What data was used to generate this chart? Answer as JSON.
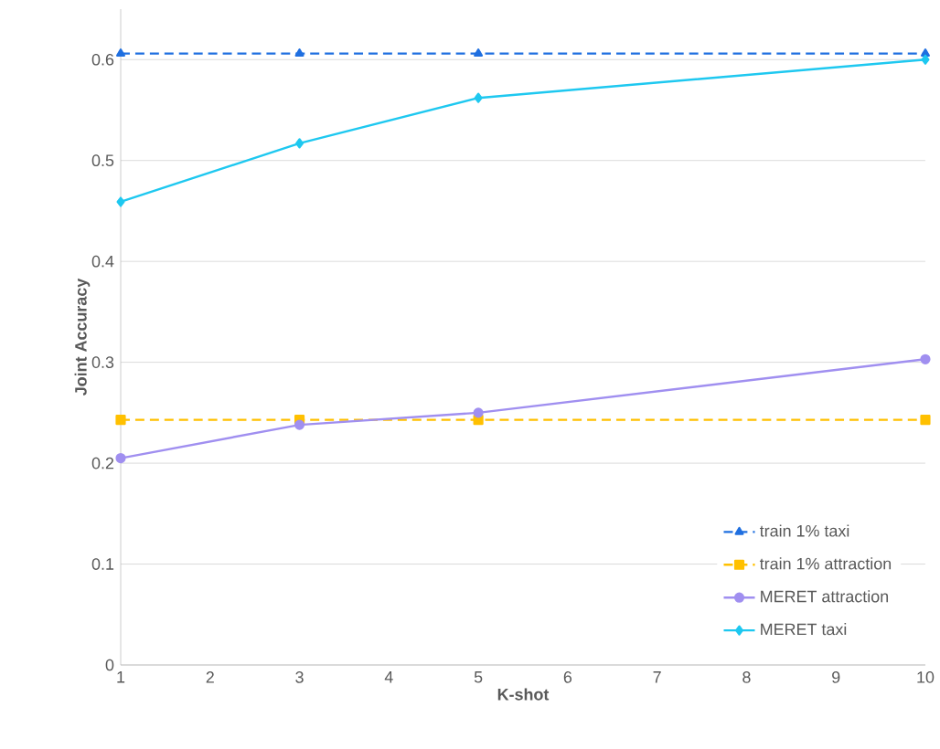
{
  "chart_data": {
    "type": "line",
    "xlabel": "K-shot",
    "ylabel": "Joint Accuracy",
    "xlim": [
      1,
      10
    ],
    "xticks": [
      1,
      2,
      3,
      4,
      5,
      6,
      7,
      8,
      9,
      10
    ],
    "ylim": [
      0,
      0.65
    ],
    "yticks": [
      0,
      0.1,
      0.2,
      0.3,
      0.4,
      0.5,
      0.6
    ],
    "grid": "y",
    "legend": "bottom right",
    "series": [
      {
        "name": "train 1% taxi",
        "color": "#1f6fe0",
        "marker": "triangle",
        "line_style": "dashed",
        "x": [
          1,
          3,
          5,
          10
        ],
        "values": [
          0.606,
          0.606,
          0.606,
          0.606
        ]
      },
      {
        "name": "train 1% attraction",
        "color": "#ffc000",
        "marker": "square",
        "line_style": "dashed",
        "x": [
          1,
          3,
          5,
          10
        ],
        "values": [
          0.243,
          0.243,
          0.243,
          0.243
        ]
      },
      {
        "name": "MERET attraction",
        "color": "#a08ff0",
        "marker": "circle",
        "line_style": "solid",
        "x": [
          1,
          3,
          5,
          10
        ],
        "values": [
          0.205,
          0.238,
          0.25,
          0.303
        ]
      },
      {
        "name": "MERET taxi",
        "color": "#1ec8f0",
        "marker": "diamond",
        "line_style": "solid",
        "x": [
          1,
          3,
          5,
          10
        ],
        "values": [
          0.459,
          0.517,
          0.562,
          0.6
        ]
      }
    ]
  }
}
